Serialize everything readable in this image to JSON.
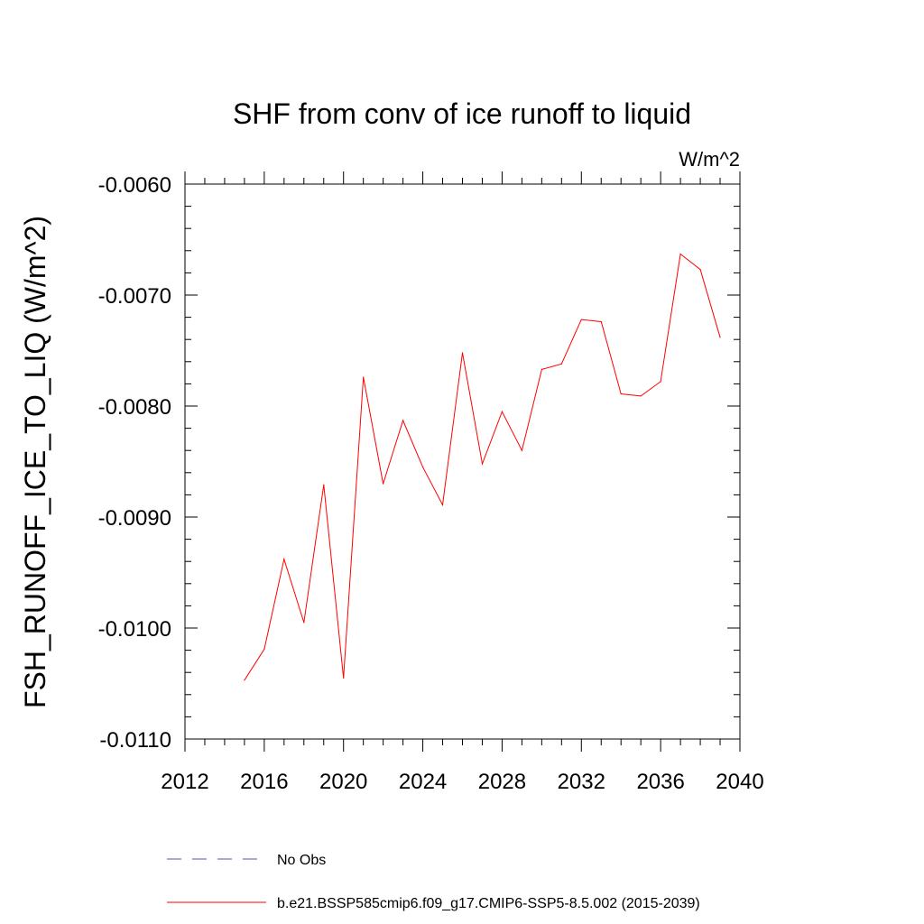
{
  "chart_data": {
    "type": "line",
    "title": "SHF from conv of ice runoff to liquid",
    "units_label": "W/m^2",
    "xlabel": "",
    "ylabel": "FSH_RUNOFF_ICE_TO_LIQ  (W/m^2)",
    "xlim": [
      2012,
      2040
    ],
    "ylim": [
      -0.011,
      -0.006
    ],
    "x_ticks": [
      2012,
      2016,
      2020,
      2024,
      2028,
      2032,
      2036,
      2040
    ],
    "x_tick_labels": [
      "2012",
      "2016",
      "2020",
      "2024",
      "2028",
      "2032",
      "2036",
      "2040"
    ],
    "x_minor_step": 1,
    "y_ticks": [
      -0.006,
      -0.007,
      -0.008,
      -0.009,
      -0.01,
      -0.011
    ],
    "y_tick_labels": [
      "-0.0060",
      "-0.0070",
      "-0.0080",
      "-0.0090",
      "-0.0100",
      "-0.0110"
    ],
    "y_minor_step": 0.0002,
    "grid": false,
    "series": [
      {
        "name": "b.e21.BSSP585cmip6.f09_g17.CMIP6-SSP5-8.5.002 (2015-2039)",
        "color": "#ff0000",
        "style": "solid",
        "x": [
          2015,
          2016,
          2017,
          2018,
          2019,
          2020,
          2021,
          2022,
          2023,
          2024,
          2025,
          2026,
          2027,
          2028,
          2029,
          2030,
          2031,
          2032,
          2033,
          2034,
          2035,
          2036,
          2037,
          2038,
          2039
        ],
        "values": [
          -0.01047,
          -0.01019,
          -0.00938,
          -0.00995,
          -0.00871,
          -0.01045,
          -0.00774,
          -0.0087,
          -0.00813,
          -0.00855,
          -0.00889,
          -0.00752,
          -0.00852,
          -0.00805,
          -0.0084,
          -0.00767,
          -0.00762,
          -0.00722,
          -0.00724,
          -0.00789,
          -0.00791,
          -0.00778,
          -0.00663,
          -0.00677,
          -0.00738
        ]
      }
    ],
    "legend": [
      {
        "label": "No Obs",
        "color": "#5555aa",
        "style": "dashed"
      },
      {
        "label": "b.e21.BSSP585cmip6.f09_g17.CMIP6-SSP5-8.5.002 (2015-2039)",
        "color": "#ff0000",
        "style": "solid"
      }
    ],
    "legend_position": "bottom"
  }
}
